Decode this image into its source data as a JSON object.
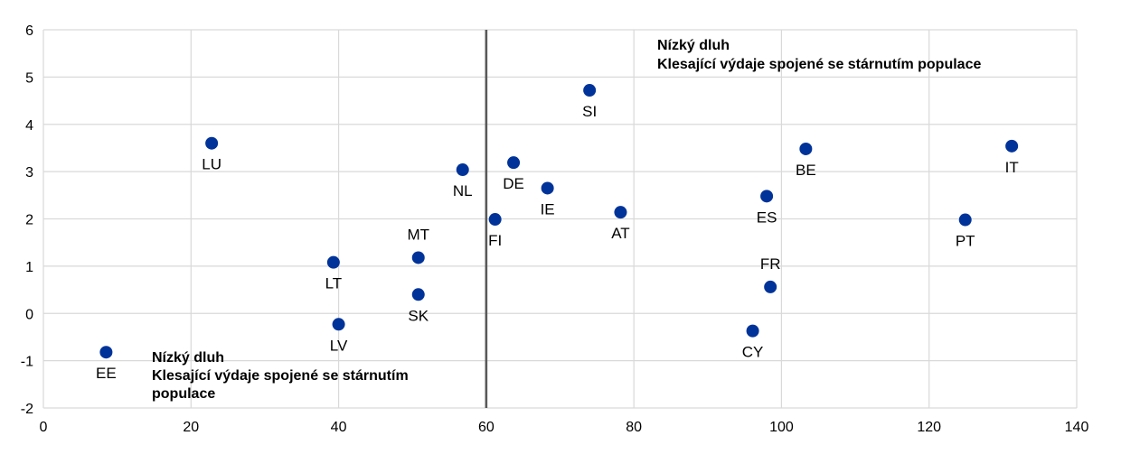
{
  "chart_data": {
    "type": "scatter",
    "title": "",
    "xlabel": "",
    "ylabel": "",
    "xlim": [
      0,
      140
    ],
    "ylim": [
      -2,
      6
    ],
    "x_ticks": [
      0,
      20,
      40,
      60,
      80,
      100,
      120,
      140
    ],
    "y_ticks": [
      -2,
      -1,
      0,
      1,
      2,
      3,
      4,
      5,
      6
    ],
    "grid": true,
    "marker_color": "#003399",
    "divider_color": "#595959",
    "vertical_line_x": 60,
    "points": [
      {
        "label": "EE",
        "x": 8.5,
        "y": -0.82
      },
      {
        "label": "LU",
        "x": 22.8,
        "y": 3.6
      },
      {
        "label": "LT",
        "x": 39.3,
        "y": 1.08
      },
      {
        "label": "LV",
        "x": 40.0,
        "y": -0.23
      },
      {
        "label": "MT",
        "x": 50.8,
        "y": 1.18
      },
      {
        "label": "SK",
        "x": 50.8,
        "y": 0.4
      },
      {
        "label": "NL",
        "x": 56.8,
        "y": 3.04
      },
      {
        "label": "FI",
        "x": 61.2,
        "y": 1.99
      },
      {
        "label": "DE",
        "x": 63.7,
        "y": 3.19
      },
      {
        "label": "IE",
        "x": 68.3,
        "y": 2.65
      },
      {
        "label": "SI",
        "x": 74.0,
        "y": 4.72
      },
      {
        "label": "AT",
        "x": 78.2,
        "y": 2.14
      },
      {
        "label": "CY",
        "x": 96.1,
        "y": -0.37
      },
      {
        "label": "ES",
        "x": 98.0,
        "y": 2.48
      },
      {
        "label": "FR",
        "x": 98.5,
        "y": 0.56
      },
      {
        "label": "BE",
        "x": 103.3,
        "y": 3.48
      },
      {
        "label": "PT",
        "x": 124.9,
        "y": 1.98
      },
      {
        "label": "IT",
        "x": 131.2,
        "y": 3.54
      }
    ],
    "annotations": [
      {
        "lines": [
          "Nízký dluh",
          "Klesající výdaje spojené se stárnutím populace"
        ]
      },
      {
        "lines": [
          "Nízký dluh",
          "Klesající výdaje spojené se stárnutím",
          "populace"
        ]
      }
    ]
  }
}
